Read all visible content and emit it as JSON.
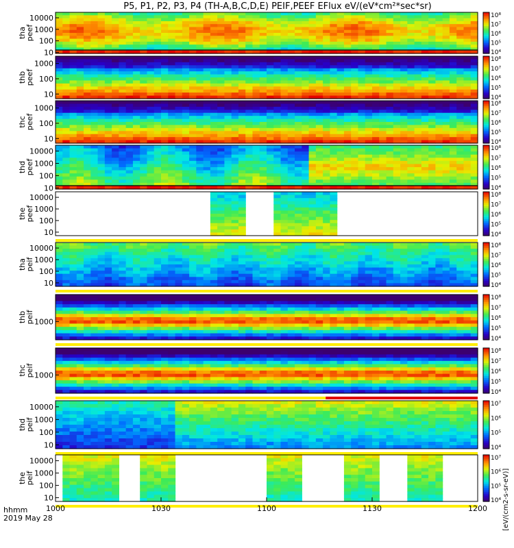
{
  "title": "P5, P1, P2, P3, P4 (TH-A,B,C,D,E) PEIF,PEEF EFlux eV/(eV*cm²*sec*sr)",
  "colorbar_label": "[eV/(cm2-s-sr-eV)]",
  "x_axis": {
    "tick_labels": [
      "1000",
      "1030",
      "1100",
      "1130",
      "1200"
    ],
    "corner_label_1": "hhmm",
    "corner_label_2": "2019 May 28"
  },
  "chart_data": {
    "type": "heatmap",
    "x_range": [
      "10:00",
      "12:00"
    ],
    "x_ticks": [
      "10:00",
      "10:30",
      "11:00",
      "11:30",
      "12:00"
    ],
    "y_scale": "log",
    "panels": [
      {
        "probe": "tha",
        "species": "peef",
        "ylabel": "tha\npeef",
        "yticks": [
          "10",
          "100",
          "1000",
          "10000"
        ],
        "yrange": [
          8,
          30000
        ],
        "cbar_ticks": [
          "10⁴",
          "10⁵",
          "10⁶",
          "10⁷",
          "10⁸"
        ],
        "cbar_range": [
          10000.0,
          100000000.0
        ],
        "profile": "electron_high",
        "line": "low",
        "coverage": [
          [
            0,
            1
          ]
        ]
      },
      {
        "probe": "thb",
        "species": "peef",
        "ylabel": "thb\npeef",
        "yticks": [
          "10",
          "100",
          "1000"
        ],
        "yrange": [
          5,
          3000
        ],
        "cbar_ticks": [
          "10⁴",
          "10⁵",
          "10⁶",
          "10⁷",
          "10⁸"
        ],
        "cbar_range": [
          10000.0,
          100000000.0
        ],
        "profile": "electron_low",
        "line": "none",
        "coverage": [
          [
            0,
            1
          ]
        ]
      },
      {
        "probe": "thc",
        "species": "peef",
        "ylabel": "thc\npeef",
        "yticks": [
          "10",
          "100",
          "1000"
        ],
        "yrange": [
          5,
          3000
        ],
        "cbar_ticks": [
          "10⁴",
          "10⁵",
          "10⁶",
          "10⁷",
          "10⁸"
        ],
        "cbar_range": [
          10000.0,
          100000000.0
        ],
        "profile": "electron_low",
        "line": "none",
        "coverage": [
          [
            0,
            1
          ]
        ]
      },
      {
        "probe": "thd",
        "species": "peef",
        "ylabel": "thd\npeef",
        "yticks": [
          "10",
          "100",
          "1000",
          "10000"
        ],
        "yrange": [
          8,
          30000
        ],
        "cbar_ticks": [
          "10⁴",
          "10⁵",
          "10⁶",
          "10⁷",
          "10⁸"
        ],
        "cbar_range": [
          10000.0,
          100000000.0
        ],
        "profile": "electron_mid",
        "line": "low",
        "coverage": [
          [
            0,
            1
          ]
        ]
      },
      {
        "probe": "the",
        "species": "peef",
        "ylabel": "the\npeef",
        "yticks": [
          "10",
          "100",
          "1000",
          "10000"
        ],
        "yrange": [
          5,
          30000
        ],
        "cbar_ticks": [
          "10⁴",
          "10⁵",
          "10⁶",
          "10⁷",
          "10⁸"
        ],
        "cbar_range": [
          10000.0,
          100000000.0
        ],
        "profile": "sparse_e",
        "line": "none",
        "coverage": [
          [
            0.375,
            0.455
          ],
          [
            0.518,
            0.595
          ],
          [
            0.6,
            0.665
          ]
        ]
      },
      {
        "probe": "tha",
        "species": "peif",
        "ylabel": "tha\npeif",
        "yticks": [
          "10",
          "100",
          "1000",
          "10000"
        ],
        "yrange": [
          5,
          30000
        ],
        "cbar_ticks": [
          "10⁴",
          "10⁵",
          "10⁶",
          "10⁷",
          "10⁸"
        ],
        "cbar_range": [
          10000.0,
          100000000.0
        ],
        "profile": "ion_blue",
        "line": "none",
        "coverage": [
          [
            0,
            1
          ]
        ]
      },
      {
        "probe": "thb",
        "species": "peif",
        "ylabel": "thb\npeif",
        "yticks": [
          "1000"
        ],
        "yrange": [
          100,
          30000
        ],
        "cbar_ticks": [
          "10⁴",
          "10⁵",
          "10⁶",
          "10⁷",
          "10⁸"
        ],
        "cbar_range": [
          10000.0,
          100000000.0
        ],
        "profile": "ion_band",
        "line": "none",
        "coverage": [
          [
            0,
            1
          ]
        ]
      },
      {
        "probe": "thc",
        "species": "peif",
        "ylabel": "thc\npeif",
        "yticks": [
          "1000"
        ],
        "yrange": [
          100,
          30000
        ],
        "cbar_ticks": [
          "10⁴",
          "10⁵",
          "10⁶",
          "10⁷",
          "10⁸"
        ],
        "cbar_range": [
          10000.0,
          100000000.0
        ],
        "profile": "ion_band",
        "line": "none",
        "coverage": [
          [
            0,
            1
          ]
        ]
      },
      {
        "probe": "thd",
        "species": "peif",
        "ylabel": "thd\npeif",
        "yticks": [
          "10",
          "100",
          "1000",
          "10000"
        ],
        "yrange": [
          5,
          30000
        ],
        "cbar_ticks": [
          "10⁴",
          "10⁵",
          "10⁶",
          "10⁷"
        ],
        "cbar_range": [
          10000.0,
          10000000.0
        ],
        "profile": "ion_mixed",
        "line": "none",
        "coverage": [
          [
            0,
            1
          ]
        ]
      },
      {
        "probe": "the",
        "species": "peif",
        "ylabel": "the\npeif",
        "yticks": [
          "10",
          "100",
          "1000",
          "10000"
        ],
        "yrange": [
          5,
          30000
        ],
        "cbar_ticks": [
          "10⁴",
          "10⁵",
          "10⁶",
          "10⁷"
        ],
        "cbar_range": [
          10000.0,
          10000000.0
        ],
        "profile": "sparse_i",
        "line": "none",
        "coverage": [
          [
            0.02,
            0.145
          ],
          [
            0.205,
            0.29
          ],
          [
            0.5,
            0.59
          ],
          [
            0.69,
            0.77
          ],
          [
            0.83,
            0.91
          ]
        ]
      }
    ]
  }
}
